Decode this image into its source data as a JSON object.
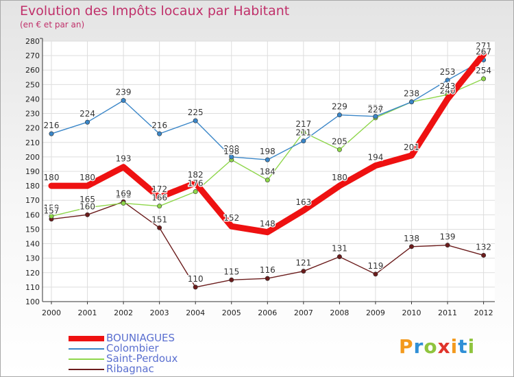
{
  "title": "Evolution des Impôts locaux par Habitant",
  "subtitle": "(en € et par an)",
  "logo": {
    "text": "Proxiti",
    "letter_colors": [
      "#f39a1e",
      "#2f8fd6",
      "#8fc43e",
      "#e0342b",
      "#f39a1e",
      "#2f8fd6",
      "#8fc43e"
    ]
  },
  "chart_data": {
    "type": "line",
    "title": "Evolution des Impôts locaux par Habitant",
    "subtitle": "(en € et par an)",
    "x": [
      "2000",
      "2001",
      "2002",
      "2003",
      "2004",
      "2005",
      "2006",
      "2007",
      "2008",
      "2009",
      "2010",
      "2011",
      "2012"
    ],
    "ylim": [
      100,
      280
    ],
    "yticks": [
      100,
      110,
      120,
      130,
      140,
      150,
      160,
      170,
      180,
      190,
      200,
      210,
      220,
      230,
      240,
      250,
      260,
      270,
      280
    ],
    "grid": true,
    "legend_position": "bottom-left",
    "series": [
      {
        "name": "BOUNIAGUES",
        "color": "#ee1111",
        "values": [
          180,
          180,
          193,
          172,
          182,
          152,
          148,
          163,
          180,
          194,
          201,
          240,
          271
        ]
      },
      {
        "name": "Colombier",
        "color": "#3a86c8",
        "values": [
          216,
          224,
          239,
          216,
          225,
          200,
          198,
          211,
          229,
          228,
          238,
          253,
          267
        ]
      },
      {
        "name": "Saint-Perdoux",
        "color": "#8ed64a",
        "values": [
          159,
          165,
          168,
          166,
          176,
          198,
          184,
          217,
          205,
          227,
          238,
          243,
          254
        ]
      },
      {
        "name": "Ribagnac",
        "color": "#6b1c1c",
        "values": [
          157,
          160,
          169,
          151,
          110,
          115,
          116,
          121,
          131,
          119,
          138,
          139,
          132
        ]
      }
    ]
  }
}
